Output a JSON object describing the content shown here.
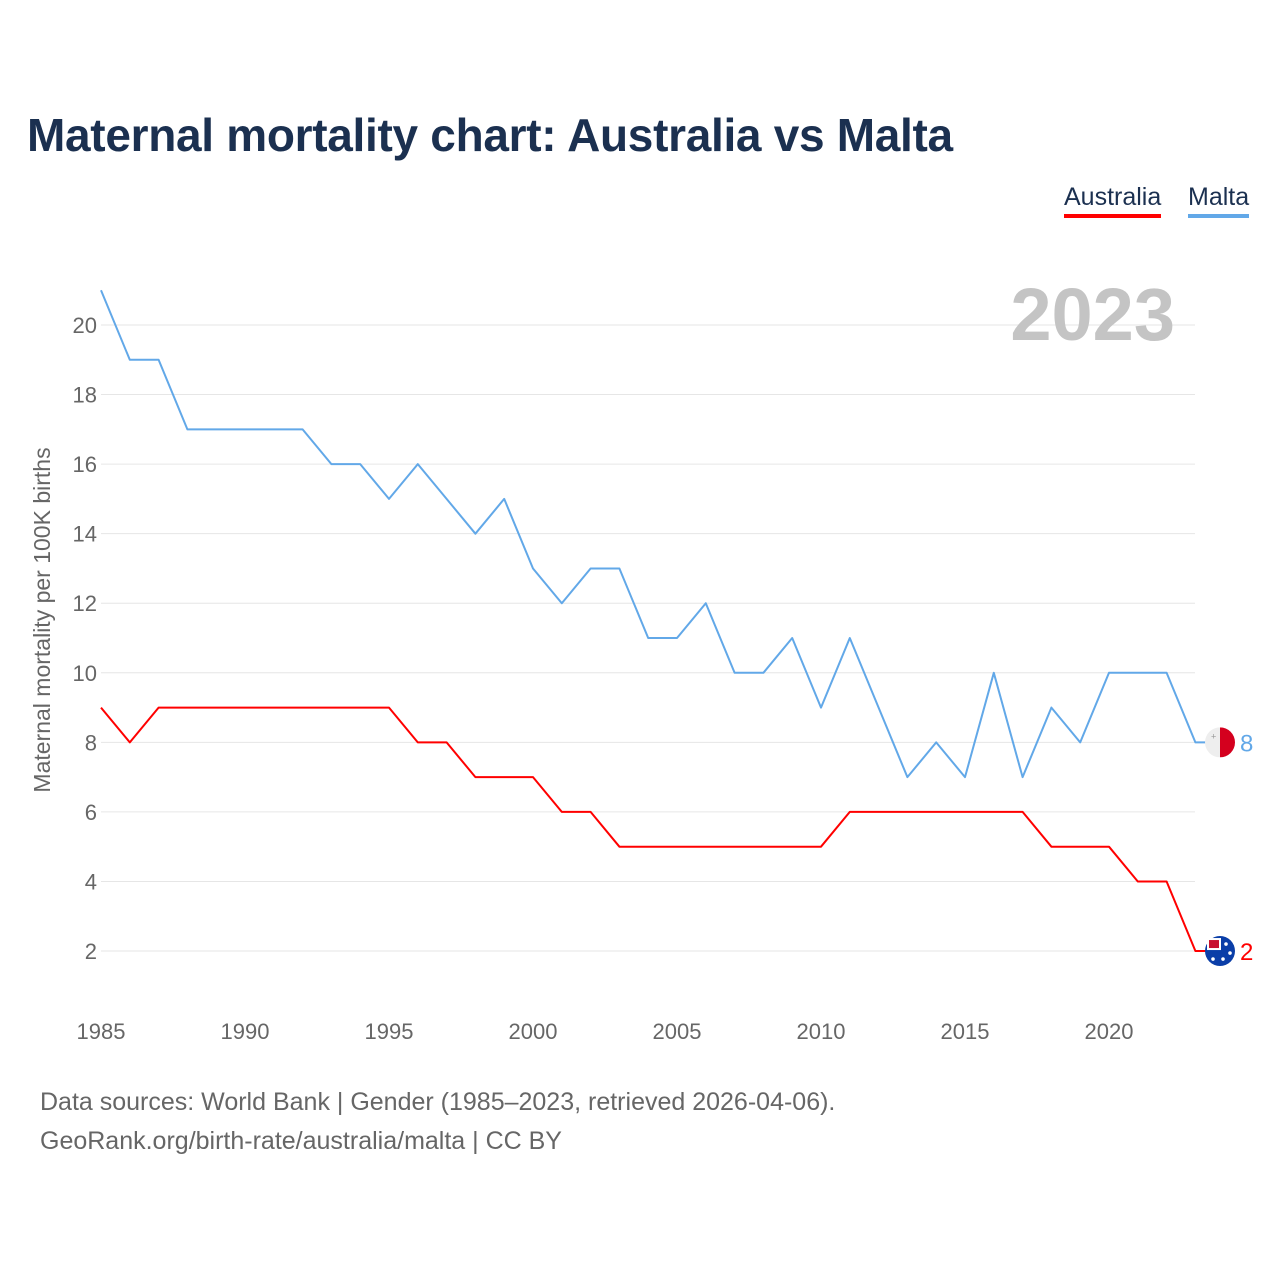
{
  "chart_data": {
    "type": "line",
    "title": "Maternal mortality chart: Australia vs Malta",
    "xlabel": "",
    "ylabel": "Maternal mortality per 100K births",
    "year_label": "2023",
    "x": [
      1985,
      1986,
      1987,
      1988,
      1989,
      1990,
      1991,
      1992,
      1993,
      1994,
      1995,
      1996,
      1997,
      1998,
      1999,
      2000,
      2001,
      2002,
      2003,
      2004,
      2005,
      2006,
      2007,
      2008,
      2009,
      2010,
      2011,
      2012,
      2013,
      2014,
      2015,
      2016,
      2017,
      2018,
      2019,
      2020,
      2021,
      2022,
      2023
    ],
    "xticks": [
      "1985",
      "1990",
      "1995",
      "2000",
      "2005",
      "2010",
      "2015",
      "2020"
    ],
    "yticks": [
      "2",
      "4",
      "6",
      "8",
      "10",
      "12",
      "14",
      "16",
      "18",
      "20"
    ],
    "ylim": [
      0,
      21
    ],
    "grid": true,
    "legend_position": "top-right",
    "series": [
      {
        "name": "Australia",
        "color": "#ff0000",
        "end_label": "2",
        "values": [
          9,
          8,
          9,
          9,
          9,
          9,
          9,
          9,
          9,
          9,
          9,
          8,
          8,
          7,
          7,
          7,
          6,
          6,
          5,
          5,
          5,
          5,
          5,
          5,
          5,
          5,
          6,
          6,
          6,
          6,
          6,
          6,
          6,
          5,
          5,
          5,
          4,
          4,
          2
        ]
      },
      {
        "name": "Malta",
        "color": "#62a8e8",
        "end_label": "8",
        "values": [
          21,
          19,
          19,
          17,
          17,
          17,
          17,
          17,
          16,
          16,
          15,
          16,
          15,
          14,
          15,
          13,
          12,
          13,
          13,
          11,
          11,
          12,
          10,
          10,
          11,
          9,
          11,
          9,
          7,
          8,
          7,
          10,
          7,
          9,
          8,
          10,
          10,
          10,
          8
        ]
      }
    ]
  },
  "footer": {
    "line1": "Data sources: World Bank | Gender (1985–2023, retrieved 2026-04-06).",
    "line2": "GeoRank.org/birth-rate/australia/malta | CC BY"
  }
}
